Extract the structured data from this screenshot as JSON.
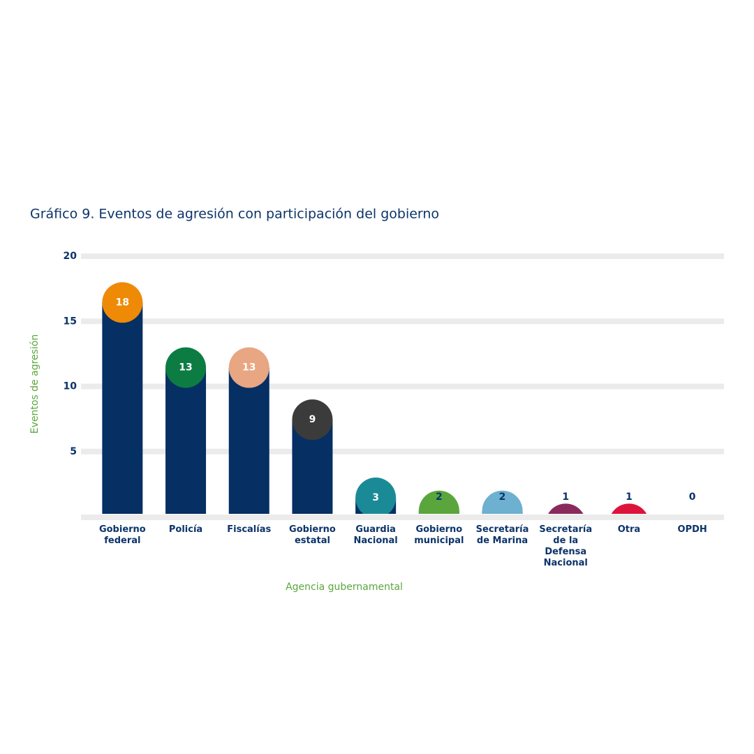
{
  "chart_data": {
    "type": "bar",
    "title": "Gráfico 9. Eventos de agresión con participación del gobierno",
    "x_label": "Agencia gubernamental",
    "y_label": "Eventos de agresión",
    "categories": [
      "Gobierno federal",
      "Policía",
      "Fiscalías",
      "Gobierno estatal",
      "Guardia Nacional",
      "Gobierno municipal",
      "Secretaría de Marina",
      "Secretaría de la Defensa Nacional",
      "Otra",
      "OPDH"
    ],
    "values": [
      18,
      13,
      13,
      9,
      3,
      2,
      2,
      1,
      1,
      0
    ],
    "color": "#062f63",
    "marker_colors": [
      "#ee8a06",
      "#0c7c43",
      "#e8a682",
      "#3b3b3b",
      "#1a8b96",
      "#5aa63c",
      "#6db0d0",
      "#8a2a5c",
      "#dc143c",
      "#0b5ea8"
    ],
    "ylim": [
      0,
      20
    ],
    "yticks": [
      5,
      10,
      15,
      20
    ],
    "grid": true
  }
}
